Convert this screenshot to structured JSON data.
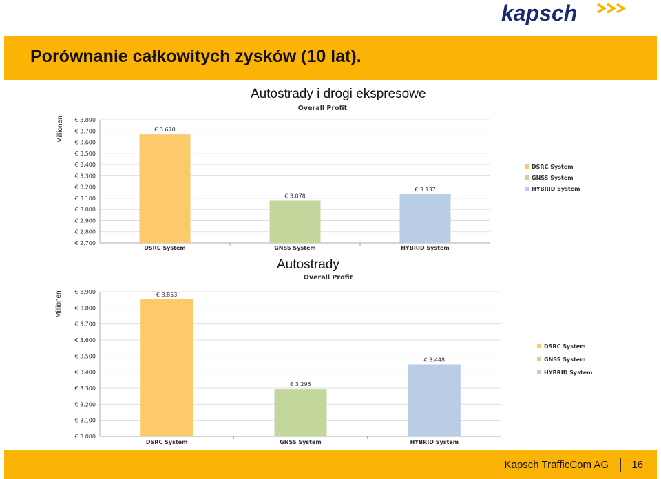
{
  "header": {
    "logo_text": "kapsch",
    "title": "Porównanie całkowitych zysków (10 lat)."
  },
  "charts_meta": [
    {
      "caption": "Autostrady i drogi ekspresowe"
    },
    {
      "caption": "Autostrady"
    }
  ],
  "chart_data": [
    {
      "type": "bar",
      "title": "Overall Profit",
      "ylabel": "Millionen",
      "xlabel": "",
      "categories": [
        "DSRC System",
        "GNSS System",
        "HYBRID System"
      ],
      "values": [
        3670,
        3078,
        3137
      ],
      "value_labels": [
        "€ 3.670",
        "€ 3.078",
        "€ 3.137"
      ],
      "ylim": [
        2700,
        3800
      ],
      "ticks": [
        2700,
        2800,
        2900,
        3000,
        3100,
        3200,
        3300,
        3400,
        3500,
        3600,
        3700,
        3800
      ],
      "tick_labels": [
        "€ 2.700",
        "€ 2.800",
        "€ 2.900",
        "€ 3.000",
        "€ 3.100",
        "€ 3.200",
        "€ 3.300",
        "€ 3.400",
        "€ 3.500",
        "€ 3.600",
        "€ 3.700",
        "€ 3.800"
      ],
      "legend": [
        "DSRC System",
        "GNSS System",
        "HYBRID System"
      ],
      "legend_position": "right",
      "colors": [
        "#fcc96b",
        "#c3d69b",
        "#b9cde5"
      ],
      "grid": true
    },
    {
      "type": "bar",
      "title": "Overall Profit",
      "ylabel": "Millionen",
      "xlabel": "",
      "categories": [
        "DSRC System",
        "GNSS System",
        "HYBRID System"
      ],
      "values": [
        3853,
        3295,
        3448
      ],
      "value_labels": [
        "€ 3.853",
        "€ 3.295",
        "€ 3.448"
      ],
      "ylim": [
        3000,
        3900
      ],
      "ticks": [
        3000,
        3100,
        3200,
        3300,
        3400,
        3500,
        3600,
        3700,
        3800,
        3900
      ],
      "tick_labels": [
        "€ 3.000",
        "€ 3.100",
        "€ 3.200",
        "€ 3.300",
        "€ 3.400",
        "€ 3.500",
        "€ 3.600",
        "€ 3.700",
        "€ 3.800",
        "€ 3.900"
      ],
      "legend": [
        "DSRC System",
        "GNSS System",
        "HYBRID System"
      ],
      "legend_position": "right",
      "colors": [
        "#fcc96b",
        "#c3d69b",
        "#b9cde5"
      ],
      "grid": true
    }
  ],
  "footer": {
    "company": "Kapsch TrafficCom AG",
    "page": "16"
  },
  "colors": {
    "accent": "#fbb405",
    "logo_blue": "#1a2b6b",
    "arrow_orange": "#fbb405"
  }
}
